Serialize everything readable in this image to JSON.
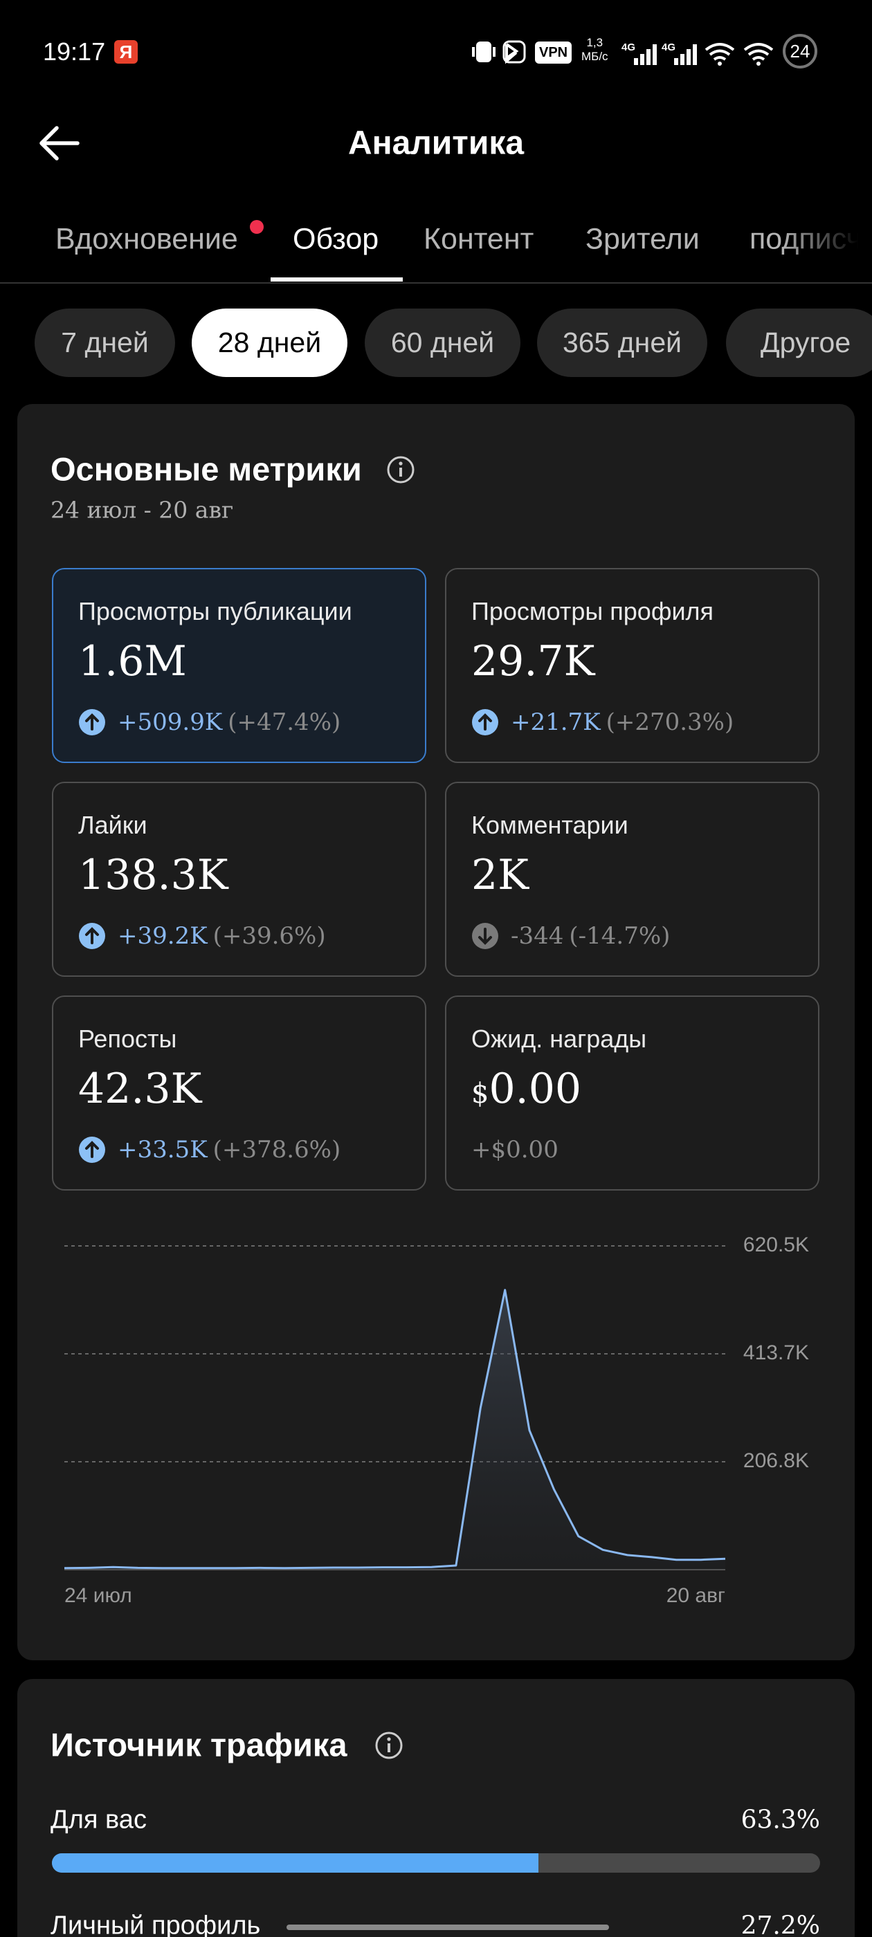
{
  "status_bar": {
    "time": "19:17",
    "app_badge": "Я",
    "vpn": "VPN",
    "speed_value": "1,3",
    "speed_unit": "МБ/с",
    "network_1": "4G",
    "network_2": "4G",
    "battery": "24"
  },
  "header": {
    "title": "Аналитика"
  },
  "tabs": {
    "items": [
      "Вдохновение",
      "Обзор",
      "Контент",
      "Зрители",
      "подписчики"
    ],
    "active": "Обзор"
  },
  "periods": {
    "items": [
      "7 дней",
      "28 дней",
      "60 дней",
      "365 дней",
      "Другое"
    ],
    "active": "28 дней"
  },
  "metrics": {
    "title": "Основные метрики",
    "date_range": "24 июл - 20 авг",
    "items": [
      {
        "label": "Просмотры публикации",
        "value": "1.6M",
        "change": "+509.9K",
        "percent": "(+47.4%)",
        "direction": "up",
        "selected": true
      },
      {
        "label": "Просмотры профиля",
        "value": "29.7K",
        "change": "+21.7K",
        "percent": "(+270.3%)",
        "direction": "up"
      },
      {
        "label": "Лайки",
        "value": "138.3K",
        "change": "+39.2K",
        "percent": "(+39.6%)",
        "direction": "up"
      },
      {
        "label": "Комментарии",
        "value": "2K",
        "change": "-344",
        "percent": "(-14.7%)",
        "direction": "down"
      },
      {
        "label": "Репосты",
        "value": "42.3K",
        "change": "+33.5K",
        "percent": "(+378.6%)",
        "direction": "up"
      },
      {
        "label": "Ожид. награды",
        "prefix": "$",
        "value": "0.00",
        "change": "+$0.00"
      }
    ]
  },
  "chart_data": {
    "type": "line",
    "categories": [
      "24 июл",
      null,
      null,
      null,
      null,
      null,
      null,
      null,
      null,
      null,
      null,
      null,
      null,
      null,
      null,
      null,
      null,
      null,
      null,
      null,
      null,
      null,
      null,
      null,
      null,
      null,
      null,
      "20 авг"
    ],
    "values": [
      3000,
      3500,
      5000,
      3500,
      3000,
      3000,
      3000,
      3000,
      3500,
      3000,
      3500,
      4000,
      4000,
      4500,
      4500,
      5000,
      8000,
      310000,
      536000,
      267000,
      154000,
      64000,
      38000,
      28000,
      24000,
      19000,
      19000,
      21000
    ],
    "color": "#8ab8f0",
    "ylim": [
      0,
      620500
    ],
    "yticks": [
      {
        "value": 206800,
        "label": "206.8K"
      },
      {
        "value": 413700,
        "label": "413.7K"
      },
      {
        "value": 620500,
        "label": "620.5K"
      }
    ],
    "grid": true
  },
  "traffic": {
    "title": "Источник трафика",
    "items": [
      {
        "label": "Для вас",
        "value": 63.3,
        "value_label": "63.3%"
      },
      {
        "label": "Личный профиль",
        "value": 27.2,
        "value_label": "27.2%"
      }
    ]
  }
}
